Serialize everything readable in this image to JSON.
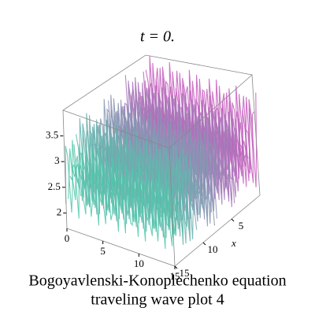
{
  "chart_data": {
    "type": "surface3d",
    "title": "t = 0.",
    "caption": [
      "Bogoyavlenski-Konoplechenko equation",
      "traveling wave plot 4"
    ],
    "xlabel": "x",
    "xlim": [
      0,
      15
    ],
    "xticks": [
      5,
      10,
      15
    ],
    "ylim": [
      0,
      15
    ],
    "yticks": [
      0,
      5,
      10,
      15
    ],
    "zlim": [
      1.7,
      4
    ],
    "zticks": [
      2,
      2.5,
      3,
      3.5
    ]
  }
}
